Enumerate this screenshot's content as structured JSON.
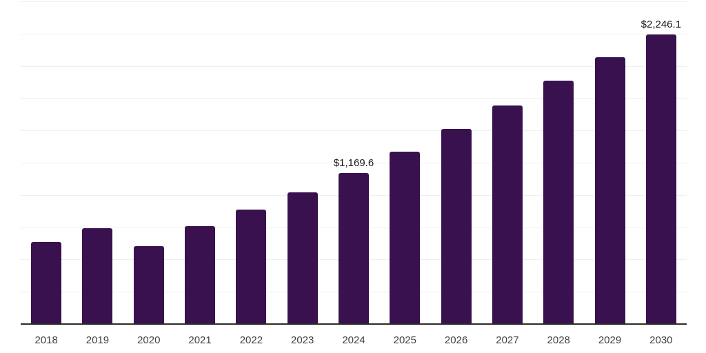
{
  "chart_data": {
    "type": "bar",
    "title": "",
    "xlabel": "",
    "ylabel": "",
    "categories": [
      "2018",
      "2019",
      "2020",
      "2021",
      "2022",
      "2023",
      "2024",
      "2025",
      "2026",
      "2027",
      "2028",
      "2029",
      "2030"
    ],
    "values": [
      638,
      740,
      606,
      761,
      886,
      1022,
      1169.6,
      1334,
      1510,
      1691,
      1885,
      2065,
      2246.1
    ],
    "value_labels": {
      "2024": "$1,169.6",
      "2030": "$2,246.1"
    },
    "ylim": [
      0,
      2500
    ],
    "gridline_step": 250,
    "grid": "horizontal-only",
    "legend_position": "none",
    "y_tick_labels_visible": false,
    "colors": {
      "bar": "#39114F",
      "gridline": "#EFEFEF",
      "axis": "#2B2B2B",
      "x_tick_label": "#404040",
      "value_label": "#1A1A1A",
      "background": "#FFFFFF"
    }
  }
}
